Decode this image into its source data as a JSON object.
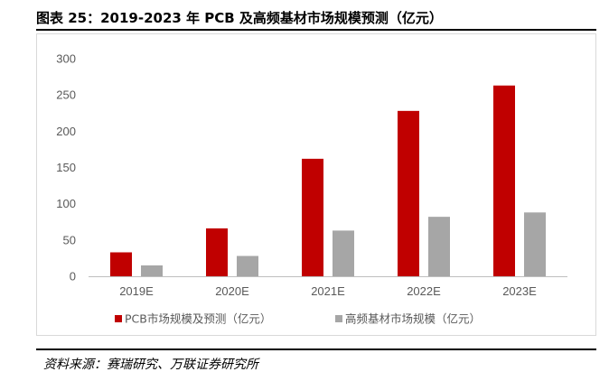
{
  "title": "图表 25：2019-2023 年 PCB 及高频基材市场规模预测（亿元）",
  "source": "资料来源：赛瑞研究、万联证券研究所",
  "chart_data": {
    "type": "bar",
    "categories": [
      "2019E",
      "2020E",
      "2021E",
      "2022E",
      "2023E"
    ],
    "series": [
      {
        "name": "PCB市场规模及预测（亿元）",
        "values": [
          33,
          66,
          162,
          228,
          263
        ],
        "color": "#c00000"
      },
      {
        "name": "高频基材市场规模（亿元）",
        "values": [
          15,
          28,
          63,
          82,
          88
        ],
        "color": "#a6a6a6"
      }
    ],
    "ylim": [
      0,
      300
    ],
    "yticks": [
      "0",
      "50",
      "100",
      "150",
      "200",
      "250",
      "300"
    ],
    "grid": false,
    "legend": "bottom-center"
  }
}
